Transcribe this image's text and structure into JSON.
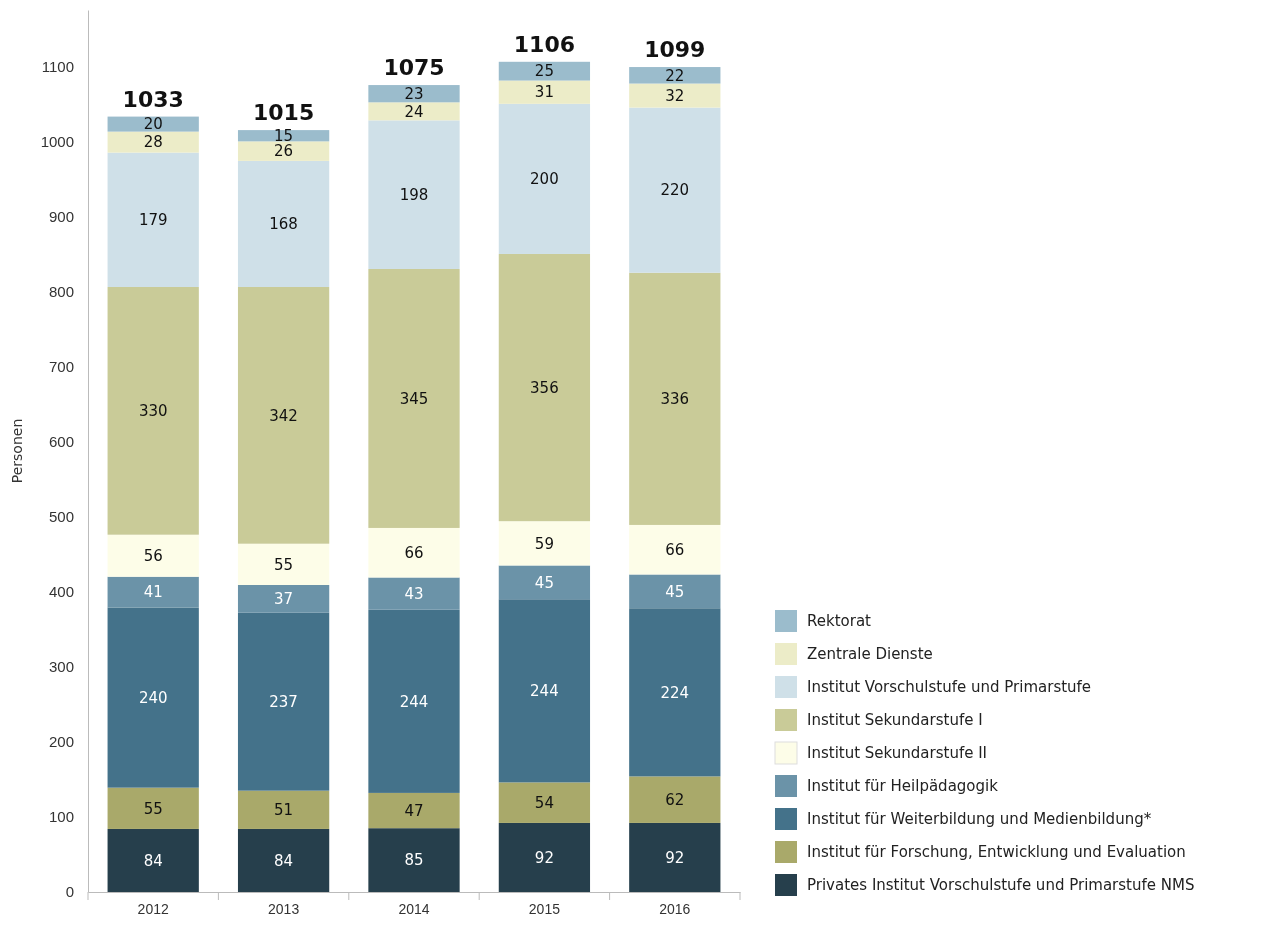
{
  "chart_data": {
    "type": "bar",
    "stacked": true,
    "ylabel": "Personen",
    "categories": [
      "2012",
      "2013",
      "2014",
      "2015",
      "2016"
    ],
    "ylim": [
      0,
      1175
    ],
    "yticks": [
      0,
      100,
      200,
      300,
      400,
      500,
      600,
      700,
      800,
      900,
      1000,
      1100
    ],
    "grid": false,
    "legend": "bottom right",
    "data_labels": true,
    "totals": [
      "1033",
      "1015",
      "1075",
      "1106",
      "1099"
    ],
    "series": [
      {
        "name": "Privates Institut Vorschulstufe und Primarstufe NMS",
        "color": "#263f4c",
        "values": [
          84,
          84,
          85,
          92,
          92
        ]
      },
      {
        "name": "Institut für Forschung, Entwicklung und Evaluation",
        "color": "#a9a96a",
        "values": [
          55,
          51,
          47,
          54,
          62
        ]
      },
      {
        "name": "Institut für Weiterbildung und Medienbildung*",
        "color": "#44728a",
        "values": [
          240,
          237,
          244,
          244,
          224
        ]
      },
      {
        "name": "Institut für Heilpädagogik",
        "color": "#6b93a8",
        "values": [
          41,
          37,
          43,
          45,
          45
        ]
      },
      {
        "name": "Institut Sekundarstufe II",
        "color": "#fdfde8",
        "values": [
          56,
          55,
          66,
          59,
          66
        ]
      },
      {
        "name": "Institut Sekundarstufe I",
        "color": "#c9cb98",
        "values": [
          330,
          342,
          345,
          356,
          336
        ]
      },
      {
        "name": "Institut Vorschulstufe und Primarstufe",
        "color": "#cfe0e8",
        "values": [
          179,
          168,
          198,
          200,
          220
        ]
      },
      {
        "name": "Zentrale Dienste",
        "color": "#ececc8",
        "values": [
          28,
          26,
          24,
          31,
          32
        ]
      },
      {
        "name": "Rektorat",
        "color": "#9bbccc",
        "values": [
          20,
          15,
          23,
          25,
          22
        ]
      }
    ]
  }
}
